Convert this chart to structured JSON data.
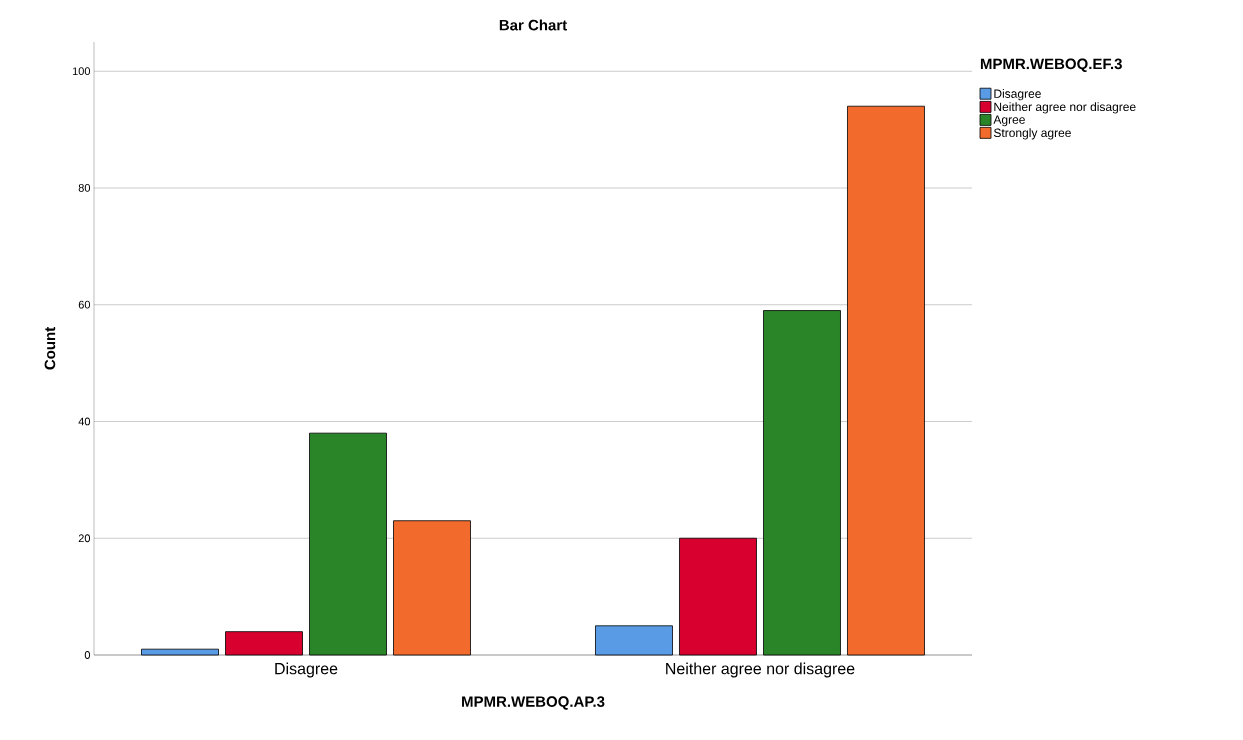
{
  "chart_data": {
    "type": "bar",
    "title": "Bar Chart",
    "xlabel": "MPMR.WEBOQ.AP.3",
    "ylabel": "Count",
    "legend_title": "MPMR.WEBOQ.EF.3",
    "categories": [
      "Disagree",
      "Neither agree nor disagree"
    ],
    "series": [
      {
        "name": "Disagree",
        "color": "#5a9be6",
        "values": [
          1,
          5
        ]
      },
      {
        "name": "Neither agree nor disagree",
        "color": "#d7002f",
        "values": [
          4,
          20
        ]
      },
      {
        "name": "Agree",
        "color": "#2a8529",
        "values": [
          38,
          59
        ]
      },
      {
        "name": "Strongly agree",
        "color": "#f26b2c",
        "values": [
          23,
          94
        ]
      }
    ],
    "ylim": [
      0,
      105
    ],
    "yticks": [
      0,
      20,
      40,
      60,
      80,
      100
    ],
    "grid": "y",
    "legend": "top right"
  }
}
